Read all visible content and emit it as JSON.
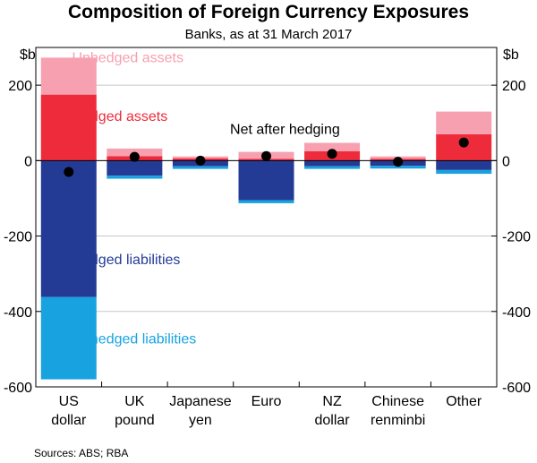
{
  "header": {
    "title": "Composition of Foreign Currency Exposures",
    "subtitle": "Banks, as at 31 March 2017"
  },
  "footer": {
    "source": "Sources: ABS; RBA"
  },
  "colors": {
    "unhedged_assets": "#f6a0b0",
    "hedged_assets": "#ee2b3b",
    "hedged_liabilities": "#243b96",
    "unhedged_liabilities": "#18a3e0",
    "net": "#000000"
  },
  "chart_data": {
    "type": "bar",
    "stacked": true,
    "unit": "$b",
    "ylim": [
      -600,
      300
    ],
    "yticks": [
      200,
      0,
      -200,
      -400,
      -600
    ],
    "ytick_labels": [
      "200",
      "0",
      "-200",
      "-400",
      "-600"
    ],
    "categories": [
      [
        "US",
        "dollar"
      ],
      [
        "UK",
        "pound"
      ],
      [
        "Japanese",
        "yen"
      ],
      [
        "Euro"
      ],
      [
        "NZ",
        "dollar"
      ],
      [
        "Chinese",
        "renminbi"
      ],
      [
        "Other"
      ]
    ],
    "series": [
      {
        "name": "Hedged assets",
        "color": "#ee2b3b",
        "values": [
          175,
          12,
          6,
          5,
          25,
          5,
          70
        ]
      },
      {
        "name": "Unhedged assets",
        "color": "#f6a0b0",
        "values": [
          98,
          20,
          5,
          18,
          22,
          6,
          60
        ]
      },
      {
        "name": "Hedged liabilities",
        "color": "#243b96",
        "values": [
          -362,
          -40,
          -15,
          -105,
          -15,
          -14,
          -25
        ]
      },
      {
        "name": "Unhedged liabilities",
        "color": "#18a3e0",
        "values": [
          -218,
          -8,
          -7,
          -8,
          -7,
          -7,
          -10
        ]
      }
    ],
    "net_after_hedging": {
      "name": "Net after hedging",
      "values": [
        -30,
        10,
        0,
        12,
        18,
        -3,
        48
      ]
    },
    "annotations": [
      {
        "text": "Unhedged assets",
        "series": "Unhedged assets",
        "color": "#f6a0b0",
        "x": 0.55,
        "y": 275
      },
      {
        "text": "Hedged assets",
        "series": "Hedged assets",
        "color": "#ee2b3b",
        "x": 0.55,
        "y": 120
      },
      {
        "text": "Net after hedging",
        "series": "Net after hedging",
        "color": "#000000",
        "x": 2.95,
        "y": 85
      },
      {
        "text": "Hedged liabilities",
        "series": "Hedged liabilities",
        "color": "#243b96",
        "x": 0.55,
        "y": -260
      },
      {
        "text": "Unhedged liabilities",
        "series": "Unhedged liabilities",
        "color": "#18a3e0",
        "x": 0.55,
        "y": -470
      }
    ]
  }
}
